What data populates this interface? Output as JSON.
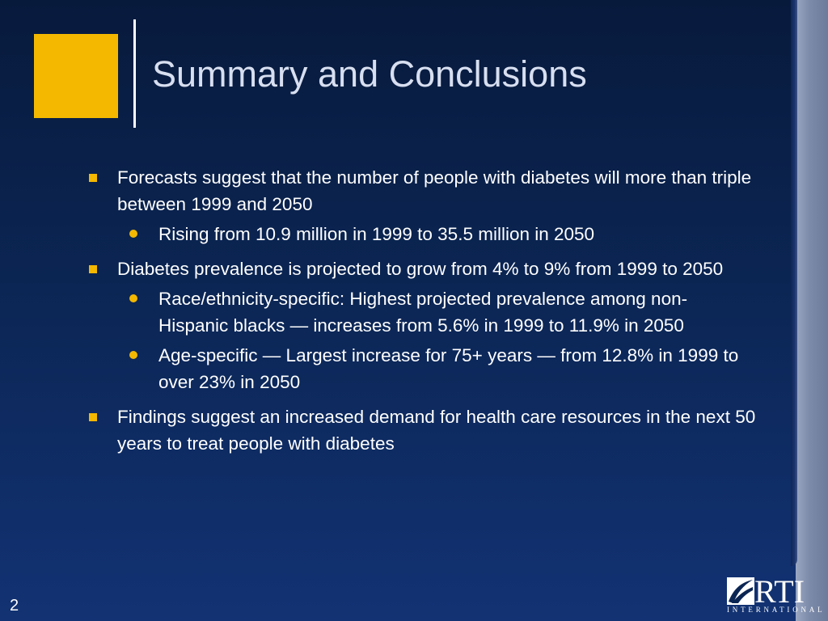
{
  "slide": {
    "title": "Summary and Conclusions",
    "number": "2",
    "colors": {
      "background": "#0b2553",
      "accent": "#f4b800",
      "title_text": "#d7dff0",
      "body_text": "#ffffff"
    }
  },
  "bullets": [
    {
      "text": "Forecasts suggest that the number of people with diabetes will more than triple between 1999 and 2050",
      "sub": [
        "Rising from 10.9 million in 1999 to 35.5 million in 2050"
      ]
    },
    {
      "text": "Diabetes prevalence is projected to grow from 4% to 9% from 1999 to 2050",
      "sub": [
        "Race/ethnicity-specific:  Highest projected prevalence among non-Hispanic blacks — increases from 5.6% in 1999 to 11.9% in 2050",
        "Age-specific — Largest increase for 75+ years — from 12.8% in 1999 to over 23% in 2050"
      ]
    },
    {
      "text": "Findings suggest an increased demand for health care resources in the next 50 years to treat people with diabetes",
      "sub": []
    }
  ],
  "logo": {
    "letters": "RTI",
    "subtitle": "INTERNATIONAL",
    "icon": "rti-swoosh-icon"
  }
}
